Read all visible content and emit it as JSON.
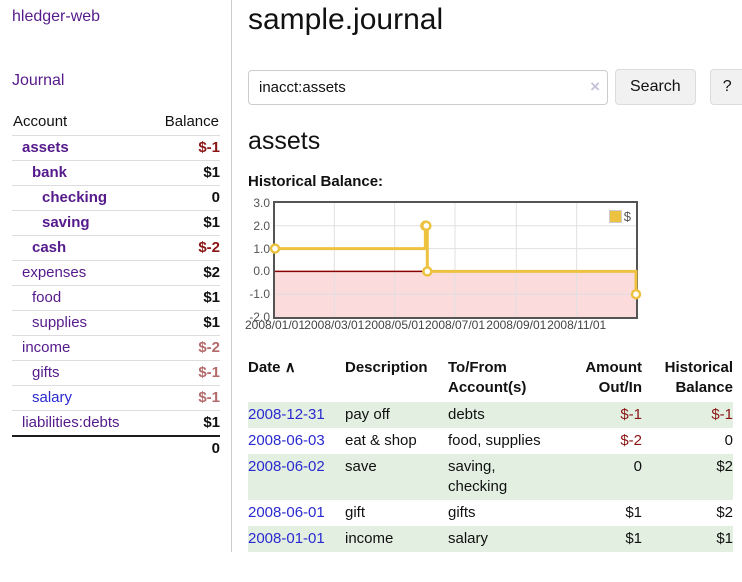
{
  "app": {
    "title": "hledger-web"
  },
  "sidebar": {
    "journal_label": "Journal",
    "accounts": {
      "account_header": "Account",
      "balance_header": "Balance",
      "rows": [
        {
          "account": "assets",
          "balance": "$-1"
        },
        {
          "account": "bank",
          "balance": "$1"
        },
        {
          "account": "checking",
          "balance": "0"
        },
        {
          "account": "saving",
          "balance": "$1"
        },
        {
          "account": "cash",
          "balance": "$-2"
        },
        {
          "account": "expenses",
          "balance": "$2"
        },
        {
          "account": "food",
          "balance": "$1"
        },
        {
          "account": "supplies",
          "balance": "$1"
        },
        {
          "account": "income",
          "balance": "$-2"
        },
        {
          "account": "gifts",
          "balance": "$-1"
        },
        {
          "account": "salary",
          "balance": "$-1"
        },
        {
          "account": "liabilities:debts",
          "balance": "$1"
        }
      ],
      "total": "0"
    }
  },
  "main": {
    "title": "sample.journal",
    "search": {
      "value": "inacct:assets",
      "clear_icon": "×",
      "button_label": "Search",
      "help_label": "?"
    },
    "account_heading": "assets"
  },
  "chart_data": {
    "type": "line",
    "title": "Historical Balance:",
    "step": true,
    "series": [
      {
        "name": "$",
        "color": "#edc240",
        "points": [
          [
            "2008-01-01",
            1
          ],
          [
            "2008-06-01",
            2
          ],
          [
            "2008-06-02",
            2
          ],
          [
            "2008-06-03",
            0
          ],
          [
            "2008-12-31",
            -1
          ]
        ]
      }
    ],
    "x_ticks": [
      "2008/01/01",
      "2008/03/01",
      "2008/05/01",
      "2008/07/01",
      "2008/09/01",
      "2008/11/01"
    ],
    "y_ticks": [
      "3.0",
      "2.0",
      "1.0",
      "0.0",
      "-1.0",
      "-2.0"
    ],
    "xlim": [
      "2008-01-01",
      "2008-12-31"
    ],
    "ylim": [
      -2,
      3
    ],
    "grid": true,
    "legend_position": "top-right",
    "legend": {
      "label": "$",
      "swatch_color": "#edc240"
    },
    "negative_region_color": "#fbdbdb",
    "zero_line_color": "#8b0000",
    "grid_color": "#e0e0e0"
  },
  "register": {
    "headers": [
      "Date",
      "Description",
      "To/From Account(s)",
      "Amount Out/In",
      "Historical Balance"
    ],
    "sort_indicator": "∧",
    "rows": [
      {
        "date": "2008-12-31",
        "description": "pay off",
        "accounts": "debts",
        "amount": "$-1",
        "balance": "$-1"
      },
      {
        "date": "2008-06-03",
        "description": "eat & shop",
        "accounts": "food, supplies",
        "amount": "$-2",
        "balance": "0"
      },
      {
        "date": "2008-06-02",
        "description": "save",
        "accounts": "saving, checking",
        "amount": "0",
        "balance": "$2"
      },
      {
        "date": "2008-06-01",
        "description": "gift",
        "accounts": "gifts",
        "amount": "$1",
        "balance": "$2"
      },
      {
        "date": "2008-01-01",
        "description": "income",
        "accounts": "salary",
        "amount": "$1",
        "balance": "$1"
      }
    ]
  }
}
